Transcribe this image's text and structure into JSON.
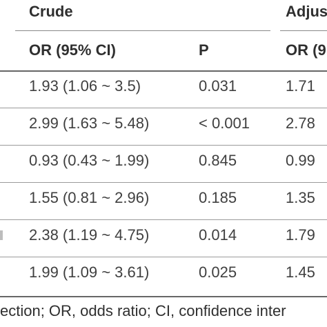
{
  "colors": {
    "text": "#3f3f3f",
    "header_text": "#2f2f2f",
    "rule": "#888888",
    "background": "#ffffff"
  },
  "table": {
    "group_headers": {
      "crude": "Crude",
      "adjusted": "Adjus"
    },
    "column_headers": {
      "crude_or": "OR (95% CI)",
      "crude_p": "P",
      "adjusted_or": "OR (9"
    },
    "rows": [
      {
        "crude_or": "1.93 (1.06 ~ 3.5)",
        "crude_p": "0.031",
        "adjusted_or": "1.71"
      },
      {
        "crude_or": "2.99 (1.63 ~ 5.48)",
        "crude_p": "< 0.001",
        "adjusted_or": "2.78"
      },
      {
        "crude_or": "0.93 (0.43 ~ 1.99)",
        "crude_p": "0.845",
        "adjusted_or": "0.99"
      },
      {
        "crude_or": "1.55 (0.81 ~ 2.96)",
        "crude_p": "0.185",
        "adjusted_or": "1.35"
      },
      {
        "crude_or": "2.38 (1.19 ~ 4.75)",
        "crude_p": "0.014",
        "adjusted_or": "1.79"
      },
      {
        "crude_or": "1.99 (1.09 ~ 3.61)",
        "crude_p": "0.025",
        "adjusted_or": "1.45"
      }
    ]
  },
  "footnote": "ection; OR, odds ratio; CI, confidence inter"
}
